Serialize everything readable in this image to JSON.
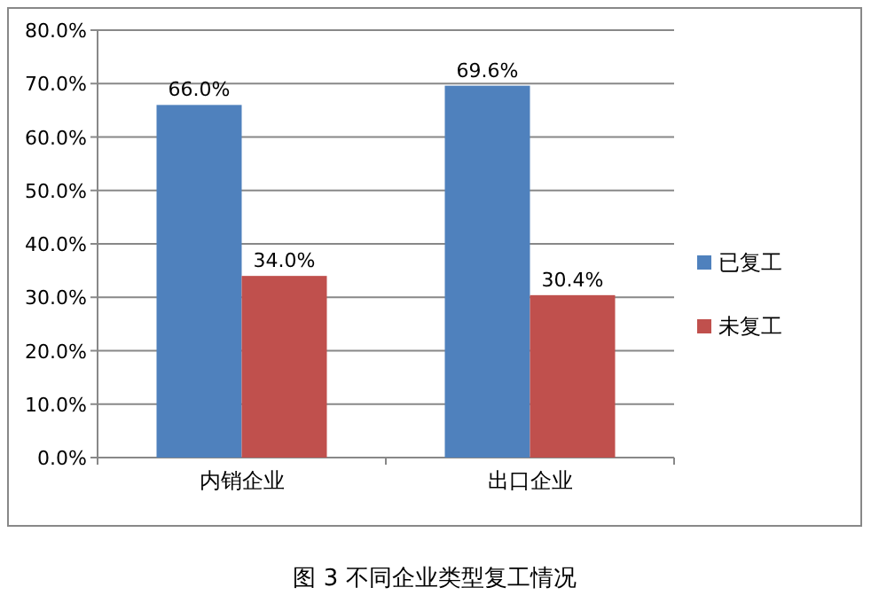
{
  "chart_data": {
    "type": "bar",
    "title": "图 3 不同企业类型复工情况",
    "categories": [
      "内销企业",
      "出口企业"
    ],
    "series": [
      {
        "name": "已复工",
        "color": "#4f81bd",
        "values": [
          66.0,
          69.6
        ],
        "value_labels": [
          "66.0%",
          "69.6%"
        ]
      },
      {
        "name": "未复工",
        "color": "#c0504d",
        "values": [
          34.0,
          30.4
        ],
        "value_labels": [
          "34.0%",
          "30.4%"
        ]
      }
    ],
    "ylim": [
      0,
      80
    ],
    "yticks": [
      {
        "value": 0,
        "label": "0.0%"
      },
      {
        "value": 10,
        "label": "10.0%"
      },
      {
        "value": 20,
        "label": "20.0%"
      },
      {
        "value": 30,
        "label": "30.0%"
      },
      {
        "value": 40,
        "label": "40.0%"
      },
      {
        "value": 50,
        "label": "50.0%"
      },
      {
        "value": 60,
        "label": "60.0%"
      },
      {
        "value": 70,
        "label": "70.0%"
      },
      {
        "value": 80,
        "label": "80.0%"
      }
    ],
    "grid": "y",
    "legend": "right"
  }
}
